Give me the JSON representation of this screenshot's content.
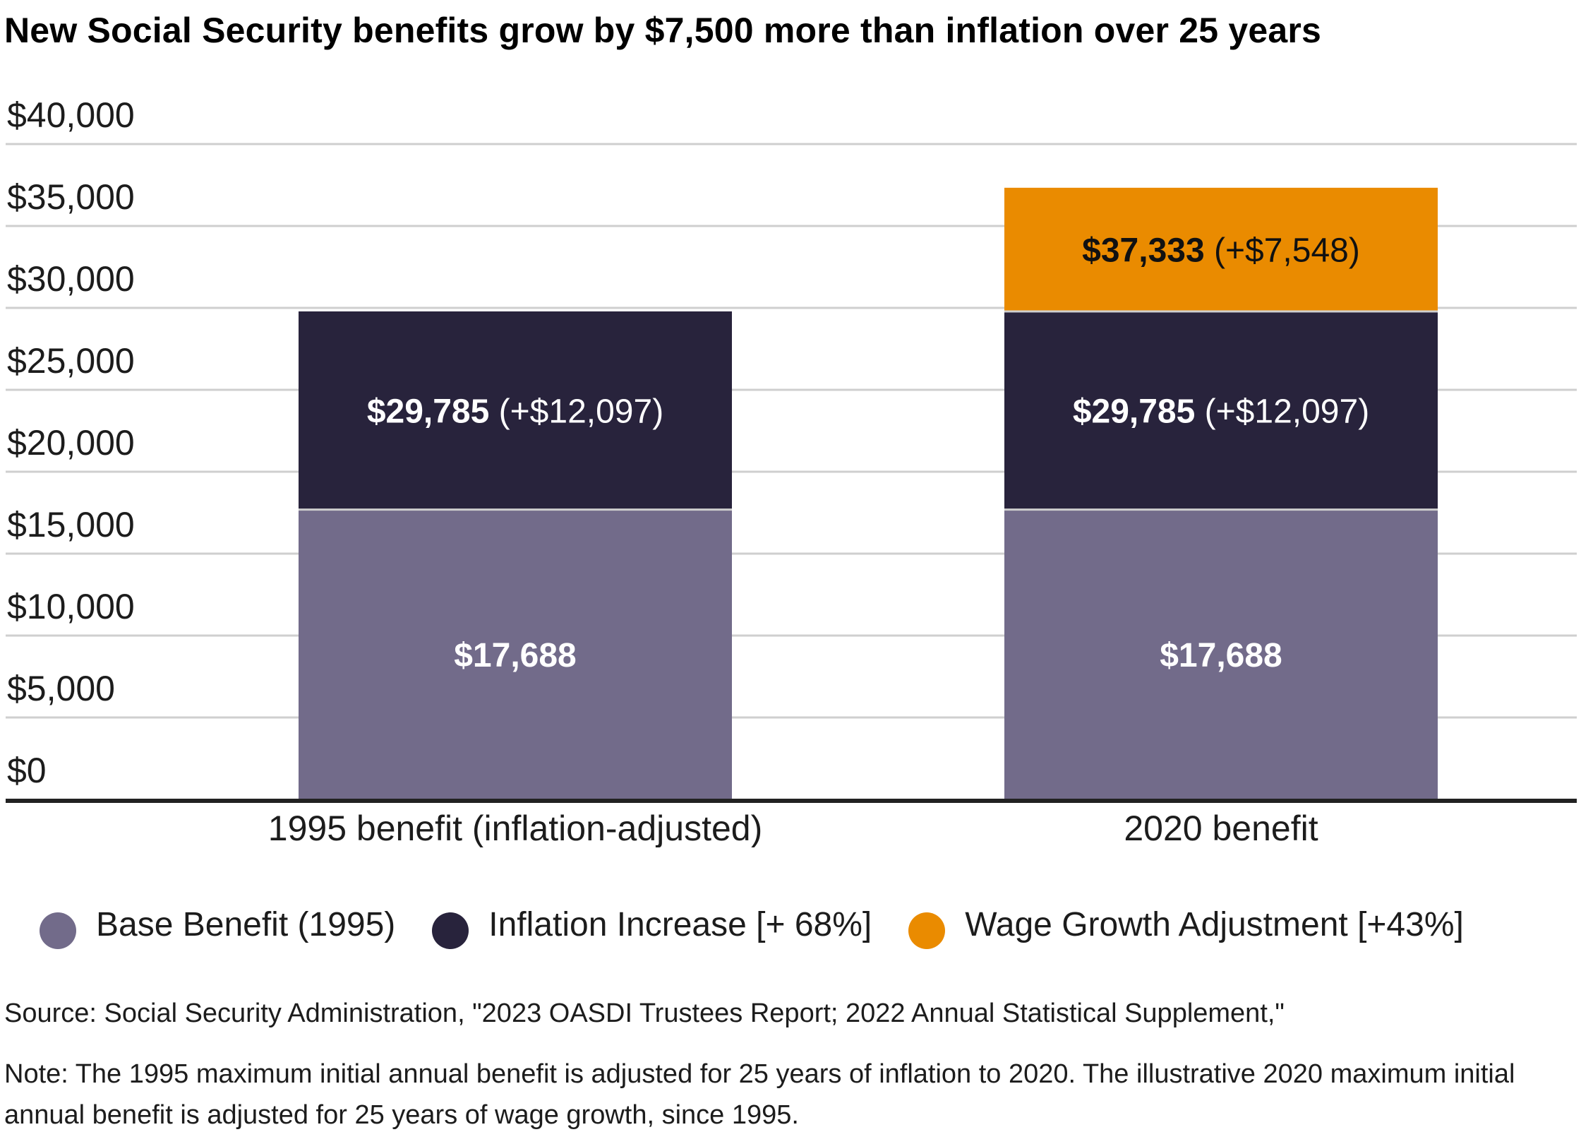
{
  "chart_data": {
    "type": "bar",
    "stacked": true,
    "title": "New Social Security benefits grow by $7,500 more than inflation over 25 years",
    "categories": [
      "1995 benefit (inflation-adjusted)",
      "2020 benefit"
    ],
    "series": [
      {
        "name": "Base Benefit (1995)",
        "color": "#726b8a",
        "values": [
          17688,
          17688
        ]
      },
      {
        "name": "Inflation Increase [+ 68%]",
        "color": "#28233c",
        "values": [
          12097,
          12097
        ]
      },
      {
        "name": "Wage Growth Adjustment [+43%]",
        "color": "#ea8b00",
        "values": [
          0,
          7548
        ]
      }
    ],
    "labels": [
      [
        {
          "bold": "$17,688",
          "extra": ""
        },
        {
          "bold": "$29,785",
          "extra": " (+$12,097)"
        },
        null
      ],
      [
        {
          "bold": "$17,688",
          "extra": ""
        },
        {
          "bold": "$29,785",
          "extra": " (+$12,097)"
        },
        {
          "bold": "$37,333",
          "extra": " (+$7,548)"
        }
      ]
    ],
    "ylim": [
      0,
      40000
    ],
    "yticks": [
      0,
      5000,
      10000,
      15000,
      20000,
      25000,
      30000,
      35000,
      40000
    ],
    "ytick_labels": [
      "$0",
      "$5,000",
      "$10,000",
      "$15,000",
      "$20,000",
      "$25,000",
      "$30,000",
      "$35,000",
      "$40,000"
    ],
    "grid": true,
    "legend_position": "bottom",
    "xlabel": "",
    "ylabel": ""
  },
  "source": "Source: Social Security Administration, \"2023 OASDI Trustees Report; 2022 Annual Statistical Supplement,\"",
  "note": "Note: The 1995 maximum initial annual benefit is adjusted for 25 years of inflation to 2020. The illustrative 2020 maximum initial annual benefit is adjusted for 25 years of wage growth, since 1995."
}
